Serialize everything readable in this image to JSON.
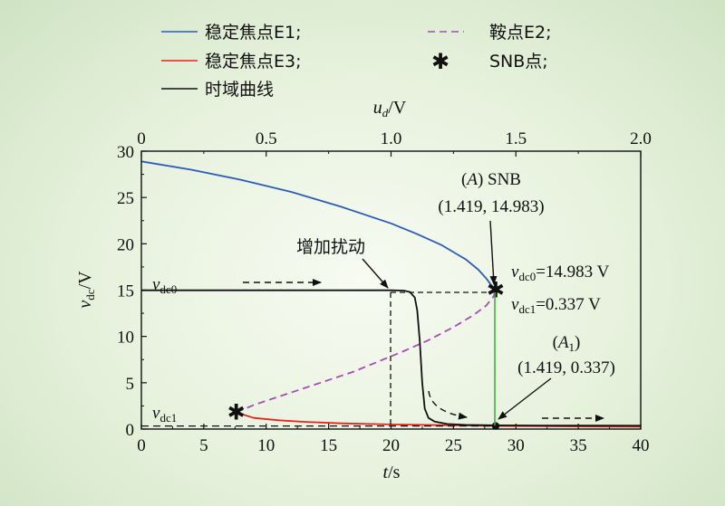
{
  "legend": {
    "e1": "稳定焦点E1;",
    "e2": "鞍点E2;",
    "e3": "稳定焦点E3;",
    "snb": "SNB点;",
    "time": "时域曲线"
  },
  "colors": {
    "e1": "#2a5cb8",
    "e2": "#a54bb8",
    "e3": "#e8231e",
    "time": "#111111",
    "snb_marker": "#e8231e",
    "vertical_line": "#3cb43c"
  },
  "chart_data": {
    "type": "line",
    "title": "",
    "xlabel": "t/s",
    "ylabel": "vdc/V",
    "x2label": "ud/V",
    "xlim": [
      0,
      40
    ],
    "ylim": [
      0,
      30
    ],
    "x2lim": [
      0,
      2.0
    ],
    "xticks": [
      "0",
      "5",
      "10",
      "15",
      "20",
      "25",
      "30",
      "35",
      "40"
    ],
    "x2ticks": [
      "0",
      "0.5",
      "1.0",
      "1.5",
      "2.0"
    ],
    "yticks": [
      "0",
      "5",
      "10",
      "15",
      "20",
      "25",
      "30"
    ],
    "series": [
      {
        "name": "稳定焦点E1",
        "axis": "top",
        "style": "solid",
        "x": [
          0,
          0.2,
          0.4,
          0.6,
          0.8,
          1.0,
          1.1,
          1.2,
          1.3,
          1.35,
          1.38,
          1.4,
          1.41,
          1.419
        ],
        "y": [
          28.9,
          28.0,
          26.9,
          25.6,
          24.0,
          22.2,
          21.1,
          19.9,
          18.3,
          17.2,
          16.3,
          15.6,
          15.3,
          14.983
        ]
      },
      {
        "name": "鞍点E2",
        "axis": "top",
        "style": "dashed",
        "x": [
          0.38,
          0.45,
          0.55,
          0.65,
          0.75,
          0.85,
          0.95,
          1.05,
          1.15,
          1.25,
          1.33,
          1.38,
          1.41,
          1.419
        ],
        "y": [
          1.8,
          2.6,
          3.5,
          4.4,
          5.3,
          6.2,
          7.3,
          8.4,
          9.6,
          11.0,
          12.3,
          13.3,
          14.3,
          14.983
        ]
      },
      {
        "name": "稳定焦点E3",
        "axis": "top",
        "style": "solid",
        "x": [
          0.38,
          0.45,
          0.55,
          0.65,
          0.8,
          1.0,
          1.2,
          1.419,
          1.6,
          1.8,
          2.0
        ],
        "y": [
          1.8,
          1.2,
          0.95,
          0.78,
          0.62,
          0.5,
          0.42,
          0.337,
          0.3,
          0.27,
          0.25
        ]
      },
      {
        "name": "时域曲线",
        "axis": "bottom",
        "style": "solid",
        "x": [
          0,
          10,
          20,
          21.0,
          21.5,
          21.9,
          22.1,
          22.3,
          22.5,
          22.7,
          23.0,
          23.5,
          24.5,
          26,
          28.5,
          32,
          36,
          40
        ],
        "y": [
          14.983,
          14.983,
          14.983,
          14.95,
          14.8,
          14.2,
          12.8,
          9.5,
          5.0,
          2.2,
          1.2,
          0.8,
          0.55,
          0.45,
          0.4,
          0.38,
          0.37,
          0.36
        ]
      },
      {
        "name": "vdc1",
        "axis": "bottom",
        "style": "dashed",
        "x": [
          0,
          28.4
        ],
        "y": [
          0.337,
          0.337
        ]
      }
    ],
    "points": [
      {
        "name": "SNB",
        "axis": "top",
        "x": 1.419,
        "y": 14.983,
        "marker": "asterisk"
      },
      {
        "name": "SNB-low",
        "axis": "top",
        "x": 0.38,
        "y": 1.8,
        "marker": "asterisk"
      },
      {
        "name": "A1",
        "axis": "top",
        "x": 1.419,
        "y": 0.337,
        "marker": "dot"
      }
    ],
    "annotations": {
      "vdc0_label": "vdc0",
      "vdc1_label": "vdc1",
      "snb_label": "(A) SNB",
      "snb_coords": "(1.419, 14.983)",
      "a1_label": "(A1)",
      "a1_coords": "(1.419, 0.337)",
      "vdc0_value": "vdc0=14.983 V",
      "vdc1_value": "vdc1=0.337 V",
      "disturb_label": "增加扰动"
    }
  }
}
